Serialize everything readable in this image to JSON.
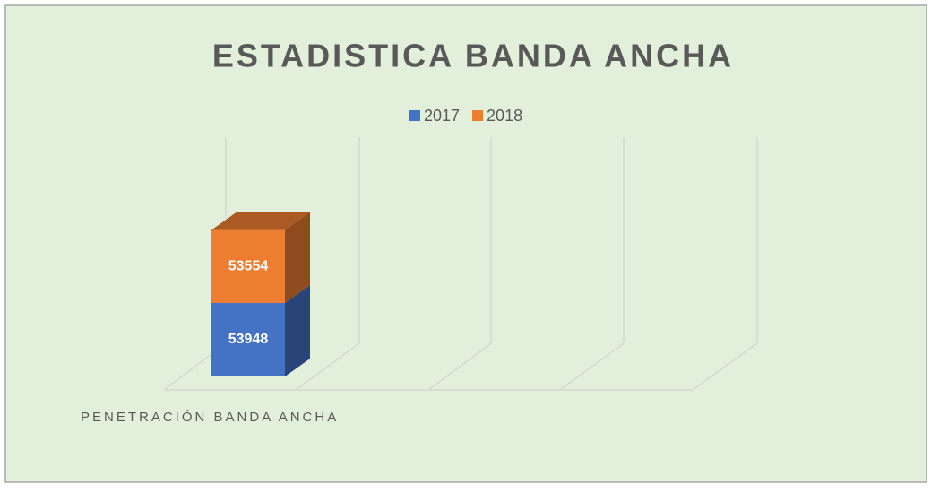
{
  "chart_data": {
    "type": "bar3d_stacked",
    "title": "ESTADISTICA BANDA ANCHA",
    "categories": [
      "PENETRACIÓN BANDA ANCHA"
    ],
    "series": [
      {
        "name": "2017",
        "color": "#4472c4",
        "values": [
          53948
        ]
      },
      {
        "name": "2018",
        "color": "#ed7d31",
        "values": [
          53554
        ]
      }
    ],
    "ylim": [
      0,
      150000
    ],
    "legend": "top"
  }
}
